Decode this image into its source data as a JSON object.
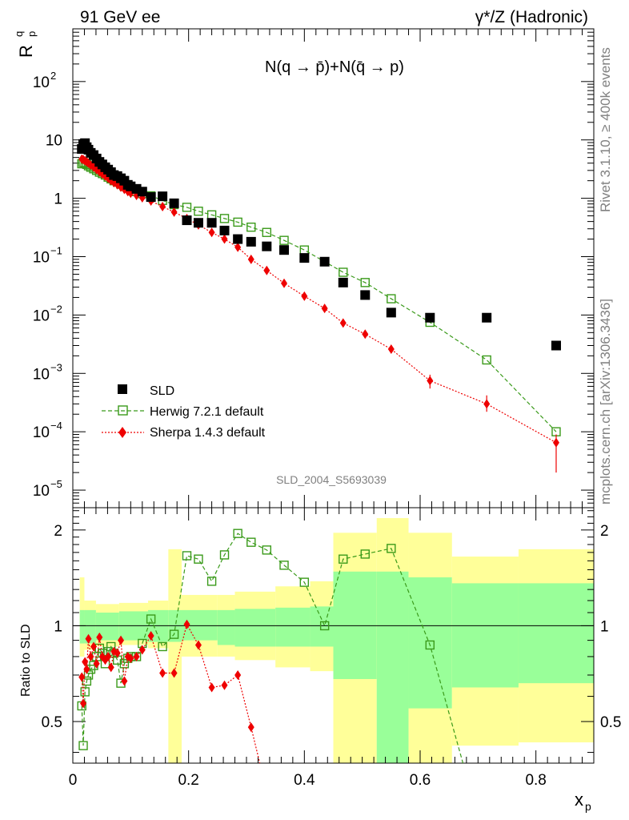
{
  "header": {
    "left": "91 GeV ee",
    "right": "γ*/Z (Hadronic)"
  },
  "side": {
    "top": "Rivet 3.1.10, ≥ 400k events",
    "bottom": "mcplots.cern.ch [arXiv:1306.3436]"
  },
  "plot_title": "N(q → p̄)+N(q̄ →  p)",
  "watermark": "SLD_2004_S5693039",
  "ylabel_main": "R",
  "ylabel_sup": "q",
  "ylabel_sub": "p",
  "ylabel_ratio": "Ratio to SLD",
  "xlabel": "x",
  "xlabel_sub": "p",
  "x_ticks": [
    "0",
    "0.2",
    "0.4",
    "0.6",
    "0.8"
  ],
  "y_ticks_main": [
    {
      "base": "10",
      "exp": "2"
    },
    {
      "base": "10",
      "exp": ""
    },
    {
      "base": "1",
      "exp": ""
    },
    {
      "base": "10",
      "exp": "−1"
    },
    {
      "base": "10",
      "exp": "−2"
    },
    {
      "base": "10",
      "exp": "−3"
    },
    {
      "base": "10",
      "exp": "−4"
    },
    {
      "base": "10",
      "exp": "−5"
    }
  ],
  "y_ticks_ratio": [
    "2",
    "1",
    "0.5"
  ],
  "legend": [
    {
      "label": "SLD"
    },
    {
      "label": "Herwig 7.2.1 default"
    },
    {
      "label": "Sherpa 1.4.3 default"
    }
  ],
  "colors": {
    "sld": "#000000",
    "herwig": "#3a9a1a",
    "sherpa": "#ee0000",
    "band_inner": "#99ff99",
    "band_outer": "#ffff99"
  },
  "chart_data": {
    "type": "scatter",
    "xlim": [
      0,
      0.9
    ],
    "ylim_main": [
      5e-06,
      800
    ],
    "yscale_main": "log",
    "ylim_ratio": [
      0.37,
      2.35
    ],
    "yscale_ratio": "log",
    "sld": [
      [
        0.0155,
        7
      ],
      [
        0.018,
        8.5
      ],
      [
        0.021,
        8.8
      ],
      [
        0.024,
        7.5
      ],
      [
        0.027,
        6.8
      ],
      [
        0.031,
        6
      ],
      [
        0.036,
        5.5
      ],
      [
        0.041,
        4.8
      ],
      [
        0.046,
        4.2
      ],
      [
        0.051,
        3.8
      ],
      [
        0.056,
        3.4
      ],
      [
        0.061,
        3.1
      ],
      [
        0.066,
        2.8
      ],
      [
        0.071,
        2.5
      ],
      [
        0.077,
        2.4
      ],
      [
        0.083,
        2.2
      ],
      [
        0.089,
        2.0
      ],
      [
        0.095,
        1.7
      ],
      [
        0.1,
        1.6
      ],
      [
        0.11,
        1.45
      ],
      [
        0.12,
        1.3
      ],
      [
        0.135,
        1.05
      ],
      [
        0.155,
        1.08
      ],
      [
        0.175,
        0.82
      ],
      [
        0.197,
        0.42
      ],
      [
        0.217,
        0.38
      ],
      [
        0.24,
        0.38
      ],
      [
        0.262,
        0.28
      ],
      [
        0.285,
        0.2
      ],
      [
        0.308,
        0.18
      ],
      [
        0.335,
        0.15
      ],
      [
        0.365,
        0.13
      ],
      [
        0.4,
        0.095
      ],
      [
        0.435,
        0.082
      ],
      [
        0.467,
        0.036
      ],
      [
        0.505,
        0.022
      ],
      [
        0.55,
        0.011
      ],
      [
        0.617,
        0.009
      ],
      [
        0.715,
        0.009
      ],
      [
        0.835,
        0.003
      ]
    ],
    "herwig": [
      [
        0.0155,
        3.9
      ],
      [
        0.018,
        4.1
      ],
      [
        0.021,
        4.0
      ],
      [
        0.024,
        3.8
      ],
      [
        0.027,
        3.6
      ],
      [
        0.031,
        3.4
      ],
      [
        0.036,
        3.2
      ],
      [
        0.041,
        3.0
      ],
      [
        0.046,
        2.8
      ],
      [
        0.051,
        2.65
      ],
      [
        0.056,
        2.5
      ],
      [
        0.061,
        2.3
      ],
      [
        0.066,
        2.15
      ],
      [
        0.071,
        2.0
      ],
      [
        0.077,
        1.9
      ],
      [
        0.083,
        1.75
      ],
      [
        0.089,
        1.6
      ],
      [
        0.095,
        1.5
      ],
      [
        0.1,
        1.42
      ],
      [
        0.11,
        1.3
      ],
      [
        0.12,
        1.2
      ],
      [
        0.135,
        1.1
      ],
      [
        0.155,
        0.92
      ],
      [
        0.175,
        0.78
      ],
      [
        0.197,
        0.7
      ],
      [
        0.217,
        0.6
      ],
      [
        0.24,
        0.52
      ],
      [
        0.262,
        0.45
      ],
      [
        0.285,
        0.39
      ],
      [
        0.308,
        0.32
      ],
      [
        0.335,
        0.26
      ],
      [
        0.365,
        0.19
      ],
      [
        0.4,
        0.13
      ],
      [
        0.435,
        0.082
      ],
      [
        0.467,
        0.054
      ],
      [
        0.505,
        0.036
      ],
      [
        0.55,
        0.019
      ],
      [
        0.617,
        0.0075
      ],
      [
        0.715,
        0.0017
      ],
      [
        0.835,
        0.0001
      ]
    ],
    "sherpa": [
      [
        0.0155,
        4.7
      ],
      [
        0.018,
        4.6
      ],
      [
        0.021,
        4.4
      ],
      [
        0.024,
        4.2
      ],
      [
        0.027,
        4.0
      ],
      [
        0.031,
        3.7
      ],
      [
        0.036,
        3.4
      ],
      [
        0.041,
        3.1
      ],
      [
        0.046,
        2.85
      ],
      [
        0.051,
        2.6
      ],
      [
        0.056,
        2.4
      ],
      [
        0.061,
        2.2
      ],
      [
        0.066,
        2.0
      ],
      [
        0.071,
        1.85
      ],
      [
        0.077,
        1.7
      ],
      [
        0.083,
        1.55
      ],
      [
        0.089,
        1.42
      ],
      [
        0.095,
        1.3
      ],
      [
        0.1,
        1.22
      ],
      [
        0.11,
        1.12
      ],
      [
        0.12,
        1.02
      ],
      [
        0.135,
        0.9
      ],
      [
        0.155,
        0.72
      ],
      [
        0.175,
        0.58
      ],
      [
        0.197,
        0.45
      ],
      [
        0.217,
        0.35
      ],
      [
        0.24,
        0.26
      ],
      [
        0.262,
        0.2
      ],
      [
        0.285,
        0.145
      ],
      [
        0.308,
        0.09
      ],
      [
        0.335,
        0.058
      ],
      [
        0.365,
        0.035
      ],
      [
        0.4,
        0.021
      ],
      [
        0.435,
        0.013
      ],
      [
        0.467,
        0.0073
      ],
      [
        0.505,
        0.0047
      ],
      [
        0.55,
        0.0026
      ],
      [
        0.617,
        0.00075
      ],
      [
        0.715,
        0.0003
      ],
      [
        0.835,
        6.5e-05
      ]
    ],
    "ratio_herwig": [
      [
        0.0155,
        0.56
      ],
      [
        0.018,
        0.42
      ],
      [
        0.021,
        0.62
      ],
      [
        0.024,
        0.67
      ],
      [
        0.027,
        0.7
      ],
      [
        0.031,
        0.73
      ],
      [
        0.036,
        0.75
      ],
      [
        0.041,
        0.8
      ],
      [
        0.046,
        0.85
      ],
      [
        0.051,
        0.82
      ],
      [
        0.056,
        0.76
      ],
      [
        0.061,
        0.83
      ],
      [
        0.066,
        0.86
      ],
      [
        0.071,
        0.82
      ],
      [
        0.077,
        0.78
      ],
      [
        0.083,
        0.66
      ],
      [
        0.089,
        0.76
      ],
      [
        0.095,
        0.79
      ],
      [
        0.1,
        0.8
      ],
      [
        0.11,
        0.8
      ],
      [
        0.12,
        0.88
      ],
      [
        0.135,
        1.05
      ],
      [
        0.155,
        0.86
      ],
      [
        0.175,
        0.94
      ],
      [
        0.197,
        1.66
      ],
      [
        0.217,
        1.62
      ],
      [
        0.24,
        1.38
      ],
      [
        0.262,
        1.67
      ],
      [
        0.285,
        1.95
      ],
      [
        0.308,
        1.83
      ],
      [
        0.335,
        1.73
      ],
      [
        0.365,
        1.55
      ],
      [
        0.4,
        1.37
      ],
      [
        0.435,
        1.0
      ],
      [
        0.467,
        1.62
      ],
      [
        0.505,
        1.68
      ],
      [
        0.55,
        1.75
      ],
      [
        0.617,
        0.87
      ],
      [
        0.715,
        0.2
      ]
    ],
    "ratio_sherpa": [
      [
        0.0155,
        0.69
      ],
      [
        0.018,
        0.57
      ],
      [
        0.021,
        0.77
      ],
      [
        0.024,
        0.73
      ],
      [
        0.027,
        0.91
      ],
      [
        0.031,
        0.8
      ],
      [
        0.036,
        0.86
      ],
      [
        0.041,
        0.76
      ],
      [
        0.046,
        0.92
      ],
      [
        0.051,
        0.8
      ],
      [
        0.056,
        0.78
      ],
      [
        0.061,
        0.8
      ],
      [
        0.066,
        0.74
      ],
      [
        0.071,
        0.83
      ],
      [
        0.077,
        0.82
      ],
      [
        0.083,
        0.9
      ],
      [
        0.089,
        0.67
      ],
      [
        0.095,
        0.8
      ],
      [
        0.1,
        0.79
      ],
      [
        0.11,
        0.8
      ],
      [
        0.12,
        0.84
      ],
      [
        0.135,
        0.93
      ],
      [
        0.155,
        0.71
      ],
      [
        0.175,
        0.71
      ],
      [
        0.197,
        1.01
      ],
      [
        0.217,
        0.87
      ],
      [
        0.24,
        0.64
      ],
      [
        0.262,
        0.65
      ],
      [
        0.285,
        0.7
      ],
      [
        0.308,
        0.48
      ],
      [
        0.335,
        0.3
      ]
    ],
    "bands": [
      [
        0.012,
        0.02,
        0.88,
        1.12,
        0.8,
        1.42
      ],
      [
        0.02,
        0.04,
        0.88,
        1.12,
        0.84,
        1.2
      ],
      [
        0.04,
        0.08,
        0.9,
        1.1,
        0.86,
        1.17
      ],
      [
        0.08,
        0.13,
        0.9,
        1.11,
        0.87,
        1.18
      ],
      [
        0.13,
        0.165,
        0.89,
        1.12,
        0.85,
        1.2
      ],
      [
        0.165,
        0.188,
        0.89,
        1.12,
        0.37,
        1.74
      ],
      [
        0.188,
        0.25,
        0.9,
        1.12,
        0.8,
        1.25
      ],
      [
        0.25,
        0.28,
        0.87,
        1.12,
        0.8,
        1.25
      ],
      [
        0.28,
        0.35,
        0.86,
        1.13,
        0.78,
        1.28
      ],
      [
        0.35,
        0.41,
        0.86,
        1.14,
        0.74,
        1.33
      ],
      [
        0.41,
        0.45,
        0.86,
        1.15,
        0.72,
        1.38
      ],
      [
        0.45,
        0.525,
        0.68,
        1.48,
        0.37,
        1.96
      ],
      [
        0.525,
        0.58,
        0.37,
        1.48,
        0.37,
        2.18
      ],
      [
        0.58,
        0.655,
        0.55,
        1.42,
        0.37,
        1.96
      ],
      [
        0.655,
        0.77,
        0.64,
        1.36,
        0.42,
        1.65
      ],
      [
        0.77,
        0.9,
        0.66,
        1.36,
        0.43,
        1.74
      ]
    ]
  }
}
